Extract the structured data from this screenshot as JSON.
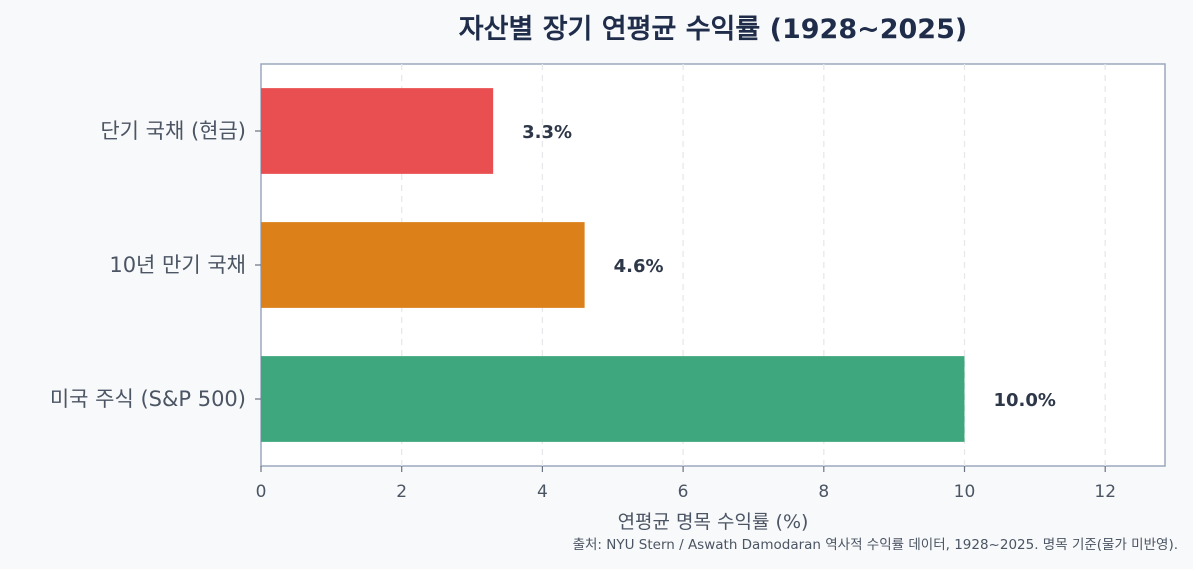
{
  "chart_data": {
    "type": "bar",
    "orientation": "horizontal",
    "title": "자산별 장기 연평균 수익률 (1928~2025)",
    "xlabel": "연평균 명목 수익률 (%)",
    "ylabel": "",
    "categories": [
      "미국 주식 (S&P 500)",
      "10년 만기 국채",
      "단기 국채 (현금)"
    ],
    "values": [
      10.0,
      4.6,
      3.3
    ],
    "value_labels": [
      "10.0%",
      "4.6%",
      "3.3%"
    ],
    "colors": [
      "#3ea77d",
      "#dc8119",
      "#e94f51"
    ],
    "xlim": [
      0,
      12.85
    ],
    "xticks": [
      0,
      2,
      4,
      6,
      8,
      10,
      12
    ],
    "grid": "vertical dashed",
    "legend": "none"
  },
  "source_note": "출처: NYU Stern / Aswath Damodaran 역사적 수익률 데이터, 1928~2025. 명목 기준(물가 미반영)."
}
